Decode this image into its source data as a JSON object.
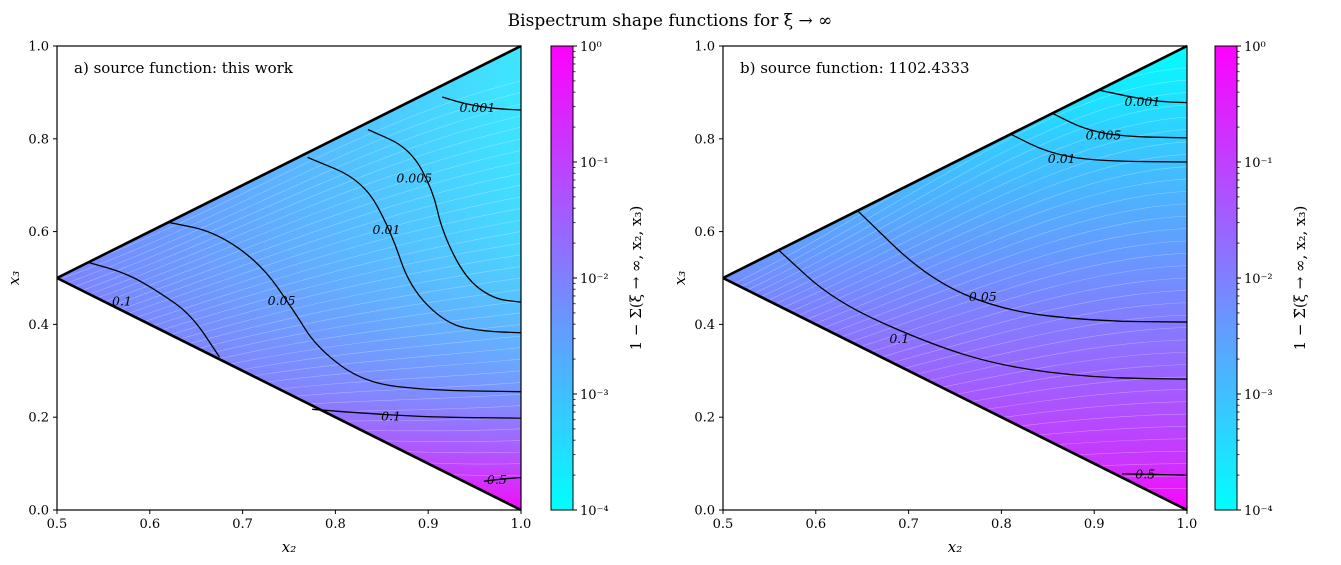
{
  "figure": {
    "title": "Bispectrum shape functions for ξ → ∞"
  },
  "chart_data": [
    {
      "type": "heatmap",
      "panel_label": "a) source function: this work",
      "xlabel": "x₂",
      "ylabel": "x₃",
      "xlim": [
        0.5,
        1.0
      ],
      "ylim": [
        0.0,
        1.0
      ],
      "xticks": [
        "0.5",
        "0.6",
        "0.7",
        "0.8",
        "0.9",
        "1.0"
      ],
      "yticks": [
        "0.0",
        "0.2",
        "0.4",
        "0.6",
        "0.8",
        "1.0"
      ],
      "colorbar": {
        "label": "1 − Σ(ξ → ∞, x₂, x₃)",
        "scale": "log",
        "range": [
          0.0001,
          1
        ],
        "ticks": [
          "10⁰",
          "10⁻¹",
          "10⁻²",
          "10⁻³",
          "10⁻⁴"
        ],
        "colors": [
          "#00ffff",
          "#ff00ff"
        ]
      },
      "contours": [
        {
          "level": "0.001",
          "points": [
            [
              0.915,
              0.89
            ],
            [
              0.94,
              0.875
            ],
            [
              0.97,
              0.865
            ],
            [
              1.0,
              0.862
            ]
          ],
          "label_at": [
            0.953,
            0.867
          ]
        },
        {
          "level": "0.005",
          "points": [
            [
              0.835,
              0.82
            ],
            [
              0.88,
              0.78
            ],
            [
              0.905,
              0.69
            ],
            [
              0.915,
              0.6
            ],
            [
              0.94,
              0.5
            ],
            [
              0.97,
              0.455
            ],
            [
              1.0,
              0.448
            ]
          ],
          "label_at": [
            0.885,
            0.715
          ]
        },
        {
          "level": "0.01",
          "points": [
            [
              0.77,
              0.76
            ],
            [
              0.83,
              0.71
            ],
            [
              0.86,
              0.6
            ],
            [
              0.88,
              0.48
            ],
            [
              0.92,
              0.4
            ],
            [
              0.96,
              0.385
            ],
            [
              1.0,
              0.382
            ]
          ],
          "label_at": [
            0.855,
            0.605
          ]
        },
        {
          "level": "0.05",
          "points": [
            [
              0.62,
              0.62
            ],
            [
              0.67,
              0.6
            ],
            [
              0.72,
              0.53
            ],
            [
              0.755,
              0.43
            ],
            [
              0.78,
              0.35
            ],
            [
              0.83,
              0.275
            ],
            [
              0.9,
              0.258
            ],
            [
              1.0,
              0.255
            ]
          ],
          "label_at": [
            0.742,
            0.452
          ]
        },
        {
          "level": "0.1",
          "points": [
            [
              0.535,
              0.533
            ],
            [
              0.575,
              0.51
            ],
            [
              0.61,
              0.47
            ],
            [
              0.645,
              0.42
            ],
            [
              0.675,
              0.33
            ]
          ],
          "label_at": [
            0.57,
            0.45
          ]
        },
        {
          "level": "0.1",
          "points": [
            [
              0.775,
              0.217
            ],
            [
              0.82,
              0.21
            ],
            [
              0.9,
              0.2
            ],
            [
              1.0,
              0.198
            ]
          ],
          "label_at": [
            0.86,
            0.203
          ]
        },
        {
          "level": "0.5",
          "points": [
            [
              0.96,
              0.062
            ],
            [
              0.98,
              0.067
            ],
            [
              1.0,
              0.07
            ]
          ],
          "label_at": [
            0.974,
            0.066
          ]
        }
      ]
    },
    {
      "type": "heatmap",
      "panel_label": "b) source function: 1102.4333",
      "xlabel": "x₂",
      "ylabel": "x₃",
      "xlim": [
        0.5,
        1.0
      ],
      "ylim": [
        0.0,
        1.0
      ],
      "xticks": [
        "0.5",
        "0.6",
        "0.7",
        "0.8",
        "0.9",
        "1.0"
      ],
      "yticks": [
        "0.0",
        "0.2",
        "0.4",
        "0.6",
        "0.8",
        "1.0"
      ],
      "colorbar": {
        "label": "1 − Σ̃(ξ → ∞, x₂, x₃)",
        "scale": "log",
        "range": [
          0.0001,
          1
        ],
        "ticks": [
          "10⁰",
          "10⁻¹",
          "10⁻²",
          "10⁻³",
          "10⁻⁴"
        ],
        "colors": [
          "#00ffff",
          "#ff00ff"
        ]
      },
      "contours": [
        {
          "level": "0.001",
          "points": [
            [
              0.905,
              0.905
            ],
            [
              0.94,
              0.89
            ],
            [
              0.97,
              0.88
            ],
            [
              1.0,
              0.878
            ]
          ],
          "label_at": [
            0.952,
            0.88
          ]
        },
        {
          "level": "0.005",
          "points": [
            [
              0.855,
              0.855
            ],
            [
              0.89,
              0.82
            ],
            [
              0.93,
              0.805
            ],
            [
              1.0,
              0.802
            ]
          ],
          "label_at": [
            0.91,
            0.808
          ]
        },
        {
          "level": "0.01",
          "points": [
            [
              0.81,
              0.81
            ],
            [
              0.85,
              0.77
            ],
            [
              0.9,
              0.752
            ],
            [
              1.0,
              0.75
            ]
          ],
          "label_at": [
            0.865,
            0.758
          ]
        },
        {
          "level": "0.05",
          "points": [
            [
              0.645,
              0.645
            ],
            [
              0.72,
              0.5
            ],
            [
              0.8,
              0.43
            ],
            [
              0.9,
              0.407
            ],
            [
              1.0,
              0.405
            ]
          ],
          "label_at": [
            0.78,
            0.46
          ]
        },
        {
          "level": "0.1",
          "points": [
            [
              0.56,
              0.56
            ],
            [
              0.62,
              0.45
            ],
            [
              0.72,
              0.36
            ],
            [
              0.8,
              0.31
            ],
            [
              0.9,
              0.285
            ],
            [
              1.0,
              0.282
            ]
          ],
          "label_at": [
            0.69,
            0.37
          ]
        },
        {
          "level": "0.5",
          "points": [
            [
              0.93,
              0.078
            ],
            [
              0.96,
              0.077
            ],
            [
              1.0,
              0.075
            ]
          ],
          "label_at": [
            0.955,
            0.078
          ]
        }
      ]
    }
  ]
}
